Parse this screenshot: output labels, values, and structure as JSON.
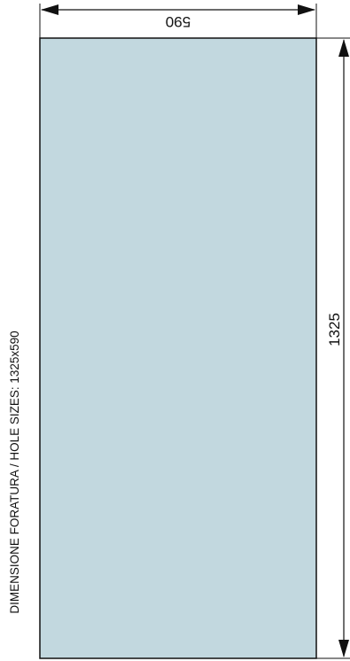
{
  "drawing": {
    "caption": "DIMENSIONE FORATURA / HOLE SIZES: 1325x590",
    "width_label": "590",
    "height_label": "1325",
    "panel_fill": "#c2d8df",
    "line_color": "#111111"
  }
}
